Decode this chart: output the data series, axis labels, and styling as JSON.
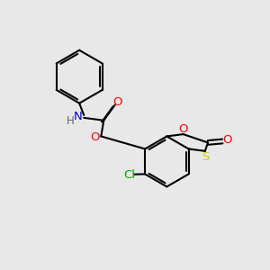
{
  "background_color": "#e8e8e8",
  "line_color": "#000000",
  "bond_width": 1.5,
  "colors": {
    "N": "#0000cc",
    "O": "#ff0000",
    "S": "#cccc00",
    "Cl": "#00aa00",
    "H": "#606060"
  },
  "figsize": [
    3.0,
    3.0
  ],
  "dpi": 100
}
